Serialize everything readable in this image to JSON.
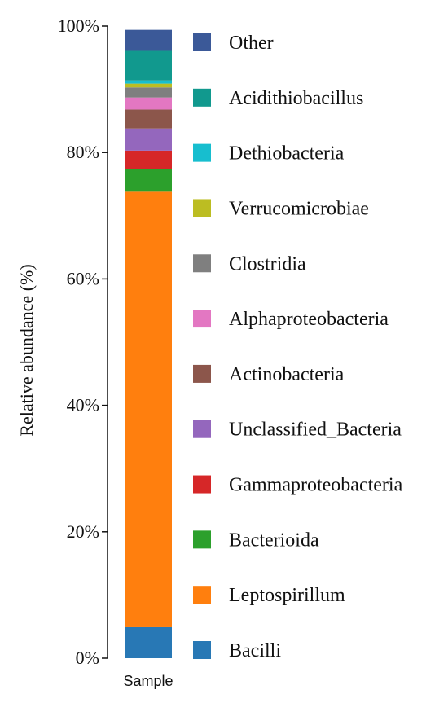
{
  "chart_data": {
    "type": "bar",
    "stacked": true,
    "xlabel": "",
    "ylabel": "Relative abundance (%)",
    "ylim": [
      0,
      100
    ],
    "y_ticks": [
      "0%",
      "20%",
      "40%",
      "60%",
      "80%",
      "100%"
    ],
    "categories": [
      "Sample"
    ],
    "legend_position": "right",
    "series": [
      {
        "name": "Bacilli",
        "values": [
          4.9
        ],
        "color": "#2878b5"
      },
      {
        "name": "Leptospirillum",
        "values": [
          68.9
        ],
        "color": "#ff7f0e"
      },
      {
        "name": "Bacterioida",
        "values": [
          3.6
        ],
        "color": "#2ca02c"
      },
      {
        "name": "Gammaproteobacteria",
        "values": [
          2.9
        ],
        "color": "#d62728"
      },
      {
        "name": "Unclassified_Bacteria",
        "values": [
          3.5
        ],
        "color": "#9467bd"
      },
      {
        "name": "Actinobacteria",
        "values": [
          3.0
        ],
        "color": "#8c564b"
      },
      {
        "name": "Alphaproteobacteria",
        "values": [
          1.9
        ],
        "color": "#e377c2"
      },
      {
        "name": "Clostridia",
        "values": [
          1.6
        ],
        "color": "#7f7f7f"
      },
      {
        "name": "Verrucomicrobiae",
        "values": [
          0.6
        ],
        "color": "#bcbd22"
      },
      {
        "name": "Dethiobacteria",
        "values": [
          0.5
        ],
        "color": "#17becf"
      },
      {
        "name": "Acidithiobacillus",
        "values": [
          4.8
        ],
        "color": "#11998e"
      },
      {
        "name": "Other",
        "values": [
          3.2
        ],
        "color": "#3b5998"
      }
    ]
  }
}
